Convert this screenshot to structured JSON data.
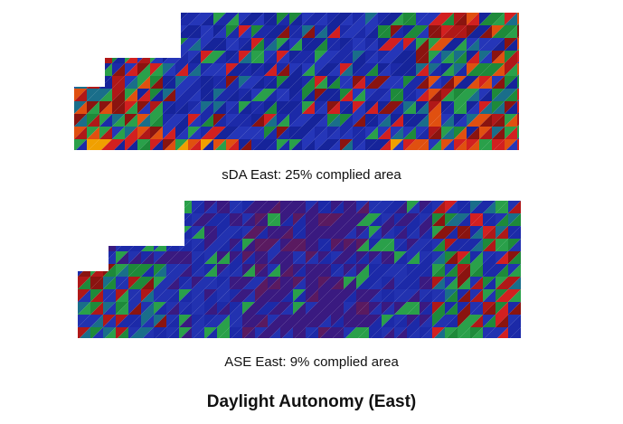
{
  "title": "Daylight Autonomy (East)",
  "panels": [
    {
      "id": "sda",
      "caption": "sDA East: 25% complied area",
      "palette": [
        "#1c2aa8",
        "#2536b8",
        "#16249a",
        "#1e8a3a",
        "#2aa04a",
        "#1a6e8a",
        "#b01818",
        "#8a1410",
        "#d22020",
        "#e05010",
        "#f0a000"
      ]
    },
    {
      "id": "ase",
      "caption": "ASE East: 9% complied area",
      "palette": [
        "#1c2aa8",
        "#2232b0",
        "#3a1a80",
        "#5a1a60",
        "#1e8a3a",
        "#2aa04a",
        "#1a6e8a",
        "#b01818",
        "#8a1410",
        "#d22020"
      ]
    }
  ]
}
